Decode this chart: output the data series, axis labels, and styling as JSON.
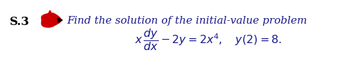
{
  "problem_number": "S.3",
  "red_blob_color": "#cc0000",
  "text_line1": "Find the solution of the initial-value problem",
  "equation": "$x\\,\\dfrac{dy}{dx} - 2y = 2x^4, \\quad y(2) = 8.$",
  "background_color": "#ffffff",
  "text_color": "#1a1a8c",
  "bold_color": "#000000",
  "fontsize_main": 11,
  "fontsize_number": 12,
  "fontsize_eq": 11.5
}
